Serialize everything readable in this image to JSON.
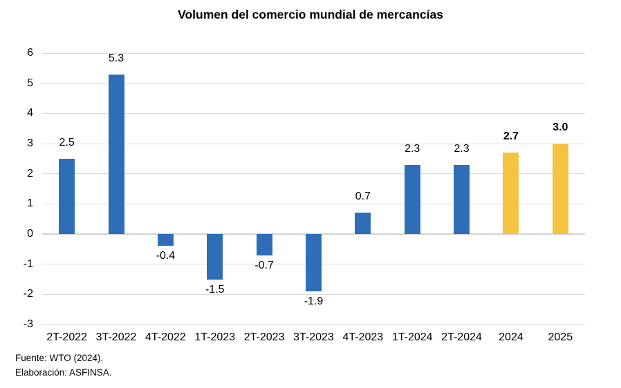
{
  "chart_data": {
    "type": "bar",
    "title": "Volumen del comercio mundial de mercancías",
    "categories": [
      "2T-2022",
      "3T-2022",
      "4T-2022",
      "1T-2023",
      "2T-2023",
      "3T-2023",
      "4T-2023",
      "1T-2024",
      "2T-2024",
      "2024",
      "2025"
    ],
    "values": [
      2.5,
      5.3,
      -0.4,
      -1.5,
      -0.7,
      -1.9,
      0.7,
      2.3,
      2.3,
      2.7,
      3.0
    ],
    "labels": [
      "2.5",
      "5.3",
      "-0.4",
      "-1.5",
      "-0.7",
      "-1.9",
      "0.7",
      "2.3",
      "2.3",
      "2.7",
      "3.0"
    ],
    "bar_colors": [
      "#2e6eb6",
      "#2e6eb6",
      "#2e6eb6",
      "#2e6eb6",
      "#2e6eb6",
      "#2e6eb6",
      "#2e6eb6",
      "#2e6eb6",
      "#2e6eb6",
      "#f5c342",
      "#f5c342"
    ],
    "bold_labels": [
      false,
      false,
      false,
      false,
      false,
      false,
      false,
      false,
      false,
      true,
      true
    ],
    "ylim": [
      -3,
      6
    ],
    "yticks": [
      6,
      5,
      4,
      3,
      2,
      1,
      0,
      -1,
      -2,
      -3
    ],
    "grid": true,
    "legend": false,
    "colors": {
      "actual_bar": "#2e6eb6",
      "projection_bar": "#f5c342",
      "gridline": "#dbdbdb",
      "zero_line": "#d2d2d2",
      "text": "#000000"
    }
  },
  "footer": {
    "source": "Fuente: WTO (2024).",
    "elaboration": "Elaboración: ASFINSA."
  }
}
